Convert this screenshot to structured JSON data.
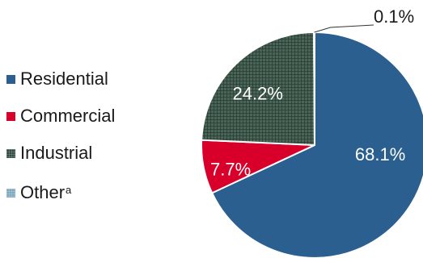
{
  "chart_data": {
    "type": "pie",
    "title": "",
    "categories": [
      "Residential",
      "Commercial",
      "Industrial",
      "Other"
    ],
    "values": [
      68.1,
      7.7,
      24.2,
      0.1
    ],
    "value_labels": [
      "68.1%",
      "7.7%",
      "24.2%",
      "0.1%"
    ],
    "legend": {
      "position": "left",
      "items": [
        {
          "label": "Residential",
          "superscript": ""
        },
        {
          "label": "Commercial",
          "superscript": ""
        },
        {
          "label": "Industrial",
          "superscript": ""
        },
        {
          "label": "Other",
          "superscript": "a"
        }
      ]
    },
    "colors": {
      "Residential": "#2a5f8f",
      "Commercial": "#d8002a",
      "Industrial": "#2f4a3f",
      "Other": "#7fa8bf",
      "label_text": "#ffffff",
      "outside_label_text": "#1a1a1a"
    },
    "patterns": {
      "Industrial": "crosshatch",
      "Other": "crosshatch"
    }
  }
}
